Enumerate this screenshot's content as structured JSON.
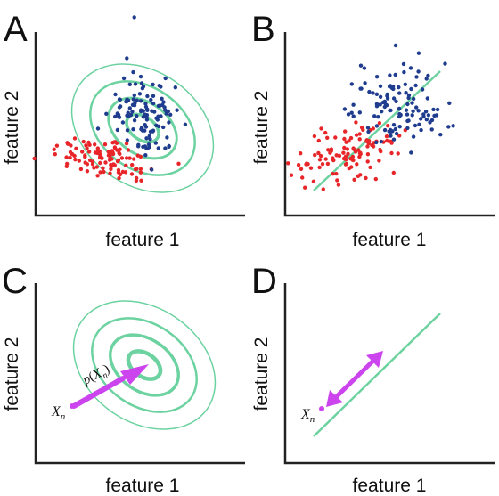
{
  "panels": [
    {
      "letter": "A",
      "xlabel": "feature 1",
      "ylabel": "feature 2"
    },
    {
      "letter": "B",
      "xlabel": "feature 1",
      "ylabel": "feature 2"
    },
    {
      "letter": "C",
      "xlabel": "feature 1",
      "ylabel": "feature 2"
    },
    {
      "letter": "D",
      "xlabel": "feature 1",
      "ylabel": "feature 2"
    }
  ],
  "point_label": {
    "base": "X",
    "subscript": "n"
  },
  "density_label": {
    "func": "p",
    "base": "X",
    "subscript": "n"
  },
  "colors": {
    "class_red": "#e8262a",
    "class_blue": "#1f3c8f",
    "model_green": "#6cd2a0",
    "highlight_purple": "#cc44ee",
    "axis": "#222222"
  }
}
